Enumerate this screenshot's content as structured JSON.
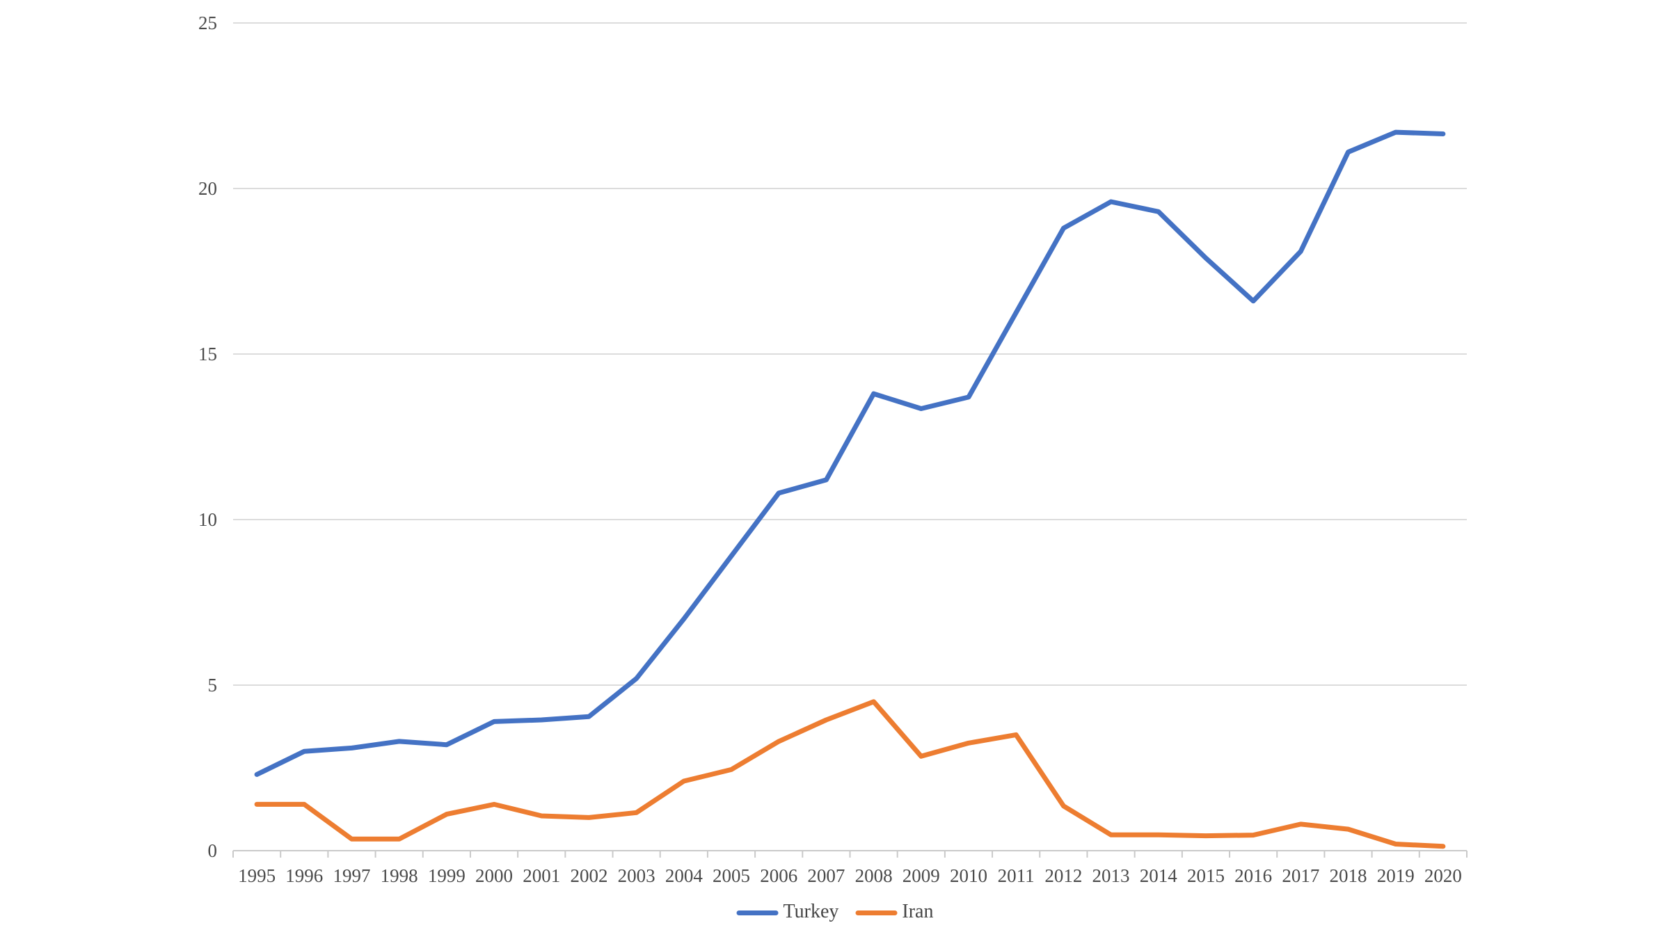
{
  "chart_data": {
    "type": "line",
    "x": [
      1995,
      1996,
      1997,
      1998,
      1999,
      2000,
      2001,
      2002,
      2003,
      2004,
      2005,
      2006,
      2007,
      2008,
      2009,
      2010,
      2011,
      2012,
      2013,
      2014,
      2015,
      2016,
      2017,
      2018,
      2019,
      2020
    ],
    "series": [
      {
        "name": "Turkey",
        "color": "#4472C4",
        "values": [
          2.3,
          3.0,
          3.1,
          3.3,
          3.2,
          3.9,
          3.95,
          4.05,
          5.2,
          7.0,
          8.9,
          10.8,
          11.2,
          13.8,
          13.35,
          13.7,
          16.25,
          18.8,
          19.6,
          19.3,
          17.9,
          16.6,
          18.1,
          21.1,
          21.7,
          21.65
        ]
      },
      {
        "name": "Iran",
        "color": "#ED7D31",
        "values": [
          1.4,
          1.4,
          0.35,
          0.35,
          1.1,
          1.4,
          1.05,
          1.0,
          1.15,
          2.1,
          2.45,
          3.3,
          3.95,
          4.5,
          2.85,
          3.25,
          3.5,
          1.35,
          0.48,
          0.48,
          0.45,
          0.47,
          0.8,
          0.65,
          0.2,
          0.13
        ]
      }
    ],
    "title": "",
    "xlabel": "",
    "ylabel": "",
    "ylim": [
      0,
      25
    ],
    "yticks": [
      0,
      5,
      10,
      15,
      20,
      25
    ],
    "grid": true,
    "legend_position": "bottom"
  },
  "style": {
    "grid_color": "#DCDCDC",
    "axis_color": "#C9C9C9",
    "text_color": "#4A4A4A",
    "background": "#FFFFFF"
  }
}
